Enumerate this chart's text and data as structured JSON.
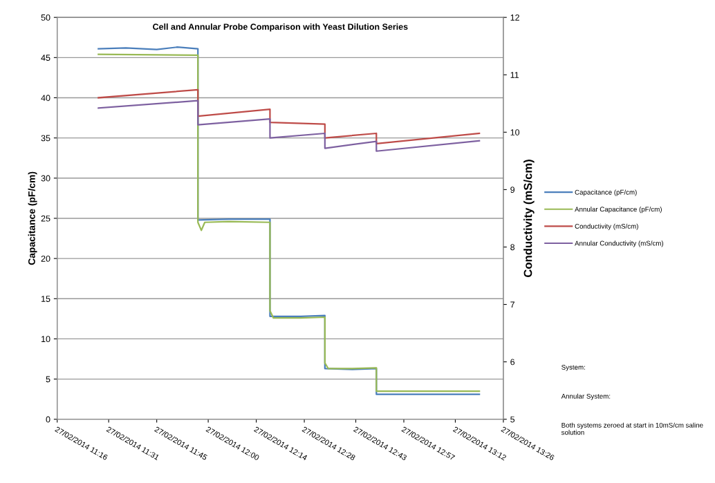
{
  "chart_data": {
    "type": "line",
    "title": "Cell and Annular Probe Comparison with Yeast Dilution Series",
    "ylabel": "Capacitance (pF/cm)",
    "y2label": "Conductivity (mS/cm)",
    "xlim": [
      "2014-02-27T11:16",
      "2014-02-27T13:26"
    ],
    "xticks": [
      {
        "value": "2014-02-27T11:16",
        "label": "27/02/2014 11:16"
      },
      {
        "value": "2014-02-27T11:31",
        "label": "27/02/2014 11:31"
      },
      {
        "value": "2014-02-27T11:45",
        "label": "27/02/2014 11:45"
      },
      {
        "value": "2014-02-27T12:00",
        "label": "27/02/2014 12:00"
      },
      {
        "value": "2014-02-27T12:14",
        "label": "27/02/2014 12:14"
      },
      {
        "value": "2014-02-27T12:28",
        "label": "27/02/2014 12:28"
      },
      {
        "value": "2014-02-27T12:43",
        "label": "27/02/2014 12:43"
      },
      {
        "value": "2014-02-27T12:57",
        "label": "27/02/2014 12:57"
      },
      {
        "value": "2014-02-27T13:12",
        "label": "27/02/2014 13:12"
      },
      {
        "value": "2014-02-27T13:26",
        "label": "27/02/2014 13:26"
      }
    ],
    "ylim": [
      0,
      50
    ],
    "yticks": [
      0,
      5,
      10,
      15,
      20,
      25,
      30,
      35,
      40,
      45,
      50
    ],
    "y2lim": [
      5,
      12
    ],
    "y2ticks": [
      5,
      6,
      7,
      8,
      9,
      10,
      11,
      12
    ],
    "grid": "y",
    "legend": "right",
    "marker": "none",
    "line_style": "solid",
    "series": [
      {
        "name": "Capacitance (pF/cm)",
        "color": "#4a7ebb",
        "x": [
          "2014-02-27T11:28",
          "2014-02-27T11:36",
          "2014-02-27T11:45",
          "2014-02-27T11:51",
          "2014-02-27T11:57",
          "2014-02-27T11:57",
          "2014-02-27T12:06",
          "2014-02-27T12:18",
          "2014-02-27T12:18",
          "2014-02-27T12:27",
          "2014-02-27T12:34",
          "2014-02-27T12:34",
          "2014-02-27T12:42",
          "2014-02-27T12:49",
          "2014-02-27T12:49",
          "2014-02-27T13:00",
          "2014-02-27T13:19"
        ],
        "values": [
          46.1,
          46.2,
          46.0,
          46.3,
          46.1,
          24.8,
          24.9,
          24.9,
          12.8,
          12.8,
          12.9,
          6.3,
          6.2,
          6.3,
          3.1,
          3.1,
          3.1
        ]
      },
      {
        "name": "Annular Capacitance (pF/cm)",
        "color": "#98b954",
        "x": [
          "2014-02-27T11:28",
          "2014-02-27T11:57",
          "2014-02-27T11:57",
          "2014-02-27T11:58",
          "2014-02-27T11:59",
          "2014-02-27T12:06",
          "2014-02-27T12:18",
          "2014-02-27T12:18",
          "2014-02-27T12:19",
          "2014-02-27T12:27",
          "2014-02-27T12:34",
          "2014-02-27T12:34",
          "2014-02-27T12:35",
          "2014-02-27T12:42",
          "2014-02-27T12:49",
          "2014-02-27T12:49",
          "2014-02-27T13:00",
          "2014-02-27T13:19"
        ],
        "values": [
          45.4,
          45.3,
          24.5,
          23.5,
          24.5,
          24.6,
          24.5,
          13.5,
          12.6,
          12.6,
          12.7,
          7.0,
          6.3,
          6.3,
          6.4,
          3.5,
          3.5,
          3.5
        ]
      },
      {
        "name": "Conductivity (mS/cm)",
        "color": "#be4b48",
        "axis": "y2",
        "x": [
          "2014-02-27T11:28",
          "2014-02-27T11:57",
          "2014-02-27T11:57",
          "2014-02-27T12:18",
          "2014-02-27T12:18",
          "2014-02-27T12:34",
          "2014-02-27T12:34",
          "2014-02-27T12:49",
          "2014-02-27T12:49",
          "2014-02-27T13:19"
        ],
        "values": [
          10.6,
          10.74,
          10.28,
          10.4,
          10.17,
          10.14,
          9.9,
          9.98,
          9.8,
          9.98
        ]
      },
      {
        "name": "Annular Conductivity (mS/cm)",
        "color": "#7d60a0",
        "axis": "y2",
        "x": [
          "2014-02-27T11:28",
          "2014-02-27T11:57",
          "2014-02-27T11:57",
          "2014-02-27T12:18",
          "2014-02-27T12:18",
          "2014-02-27T12:34",
          "2014-02-27T12:34",
          "2014-02-27T12:49",
          "2014-02-27T12:49",
          "2014-02-27T13:19"
        ],
        "values": [
          10.42,
          10.55,
          10.13,
          10.23,
          9.9,
          9.98,
          9.72,
          9.84,
          9.67,
          9.85
        ]
      }
    ],
    "annotations": [
      "System:",
      "Annular System:",
      "Both systems zeroed at start in 10mS/cm saline solution"
    ]
  }
}
